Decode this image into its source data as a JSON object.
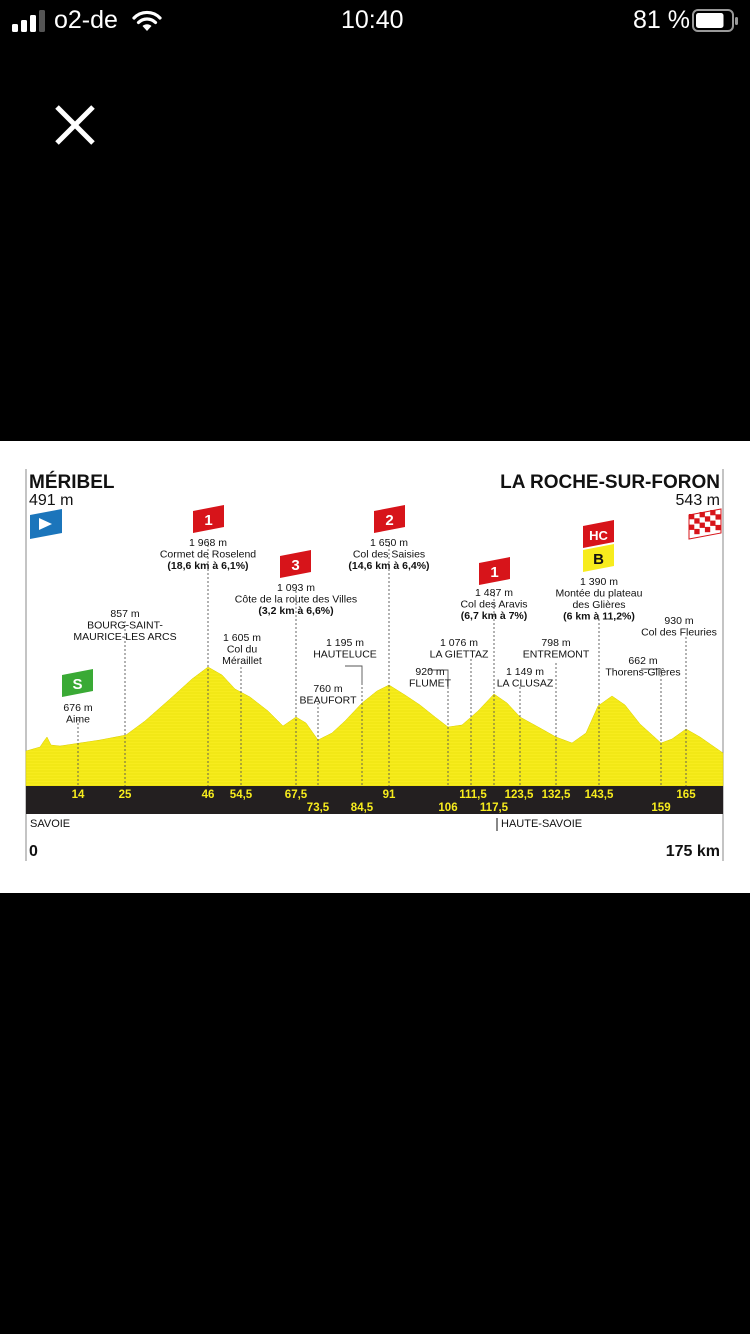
{
  "status_bar": {
    "carrier": "o2-de",
    "time": "10:40",
    "battery_percent": "81 %",
    "battery_level": 0.81,
    "signal_bars": 3
  },
  "close_icon": "close-icon",
  "profile": {
    "start_name": "MÉRIBEL",
    "start_alt": "491 m",
    "finish_name": "LA ROCHE-SUR-FORON",
    "finish_alt": "543 m",
    "start_km": "0",
    "end_km": "175 km",
    "region_left": "SAVOIE",
    "region_right": "HAUTE-SAVOIE",
    "colors": {
      "profile_fill": "#f7ec1d",
      "km_band": "#231f20",
      "km_text": "#f7ec1d",
      "climb_flag": "#d7141a",
      "start_flag": "#1b75bb",
      "sprint_flag": "#3aaa35",
      "bonus_flag": "#f7ec1d"
    },
    "km_top": [
      "14",
      "25",
      "46",
      "54,5",
      "67,5",
      "91",
      "111,5",
      "123,5",
      "132,5",
      "143,5",
      "165"
    ],
    "km_bottom": [
      "73,5",
      "84,5",
      "106",
      "117,5",
      "159"
    ],
    "flags": [
      {
        "label": "1",
        "icon": "climb-category-flag"
      },
      {
        "label": "3",
        "icon": "climb-category-flag"
      },
      {
        "label": "2",
        "icon": "climb-category-flag"
      },
      {
        "label": "1",
        "icon": "climb-category-flag"
      },
      {
        "label": "HC",
        "icon": "climb-category-flag"
      },
      {
        "label": "B",
        "icon": "bonus-flag"
      },
      {
        "label": "S",
        "icon": "sprint-flag"
      }
    ],
    "points": [
      {
        "alt": "676 m",
        "name": "Aime"
      },
      {
        "alt": "857 m",
        "name": "BOURG-SAINT-",
        "name2": "MAURICE-LES ARCS"
      },
      {
        "alt": "1 968 m",
        "name": "Cormet de Roselend",
        "detail": "(18,6 km à 6,1%)"
      },
      {
        "alt": "1 605 m",
        "name": "Col du",
        "name2": "Méraillet"
      },
      {
        "alt": "1 093 m",
        "name": "Côte de la route des Villes",
        "detail": "(3,2 km à 6,6%)"
      },
      {
        "alt": "760 m",
        "name": "BEAUFORT"
      },
      {
        "alt": "1 195 m",
        "name": "HAUTELUCE"
      },
      {
        "alt": "1 650 m",
        "name": "Col des Saisies",
        "detail": "(14,6 km à 6,4%)"
      },
      {
        "alt": "920 m",
        "name": "FLUMET"
      },
      {
        "alt": "1 076 m",
        "name": "LA GIETTAZ"
      },
      {
        "alt": "1 487 m",
        "name": "Col des Aravis",
        "detail": "(6,7 km à 7%)"
      },
      {
        "alt": "1 149 m",
        "name": "LA CLUSAZ"
      },
      {
        "alt": "798 m",
        "name": "ENTREMONT"
      },
      {
        "alt": "1 390 m",
        "name": "Montée du plateau",
        "name2": "des Glières",
        "detail": "(6 km à 11,2%)"
      },
      {
        "alt": "662 m",
        "name": "Thorens-Glières"
      },
      {
        "alt": "930 m",
        "name": "Col des Fleuries"
      }
    ]
  }
}
